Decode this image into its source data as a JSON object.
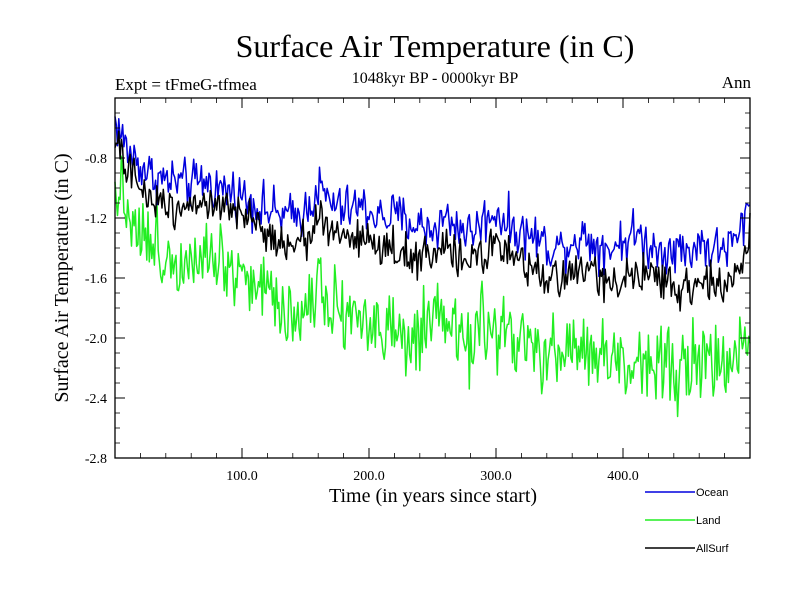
{
  "chart_data": {
    "type": "line",
    "title": "Surface Air Temperature (in C)",
    "left_label": "Expt = tFmeG-tfmea",
    "subtitle": "1048kyr BP - 0000kyr BP",
    "right_label": "Ann",
    "xlabel": "Time (in years since start)",
    "ylabel": "Surface Air Temperature (in C)",
    "xlim": [
      0,
      500
    ],
    "ylim": [
      -2.8,
      -0.4
    ],
    "xticks": [
      100,
      200,
      300,
      400
    ],
    "xtick_labels": [
      "100.0",
      "200.0",
      "300.0",
      "400.0"
    ],
    "yticks": [
      -2.8,
      -2.4,
      -2.0,
      -1.6,
      -1.2,
      -0.8
    ],
    "ytick_labels": [
      "-2.8",
      "-2.4",
      "-2.0",
      "-1.6",
      "-1.2",
      "-0.8"
    ],
    "legend_position": "bottom-right, outside plot",
    "series": [
      {
        "name": "Ocean",
        "color": "#0000dd",
        "x": [
          0,
          10,
          20,
          30,
          40,
          50,
          60,
          70,
          80,
          90,
          100,
          110,
          120,
          130,
          140,
          150,
          160,
          170,
          180,
          190,
          200,
          210,
          220,
          230,
          240,
          250,
          260,
          270,
          280,
          290,
          300,
          310,
          320,
          330,
          340,
          350,
          360,
          370,
          380,
          390,
          400,
          410,
          420,
          430,
          440,
          450,
          460,
          470,
          480,
          490,
          500
        ],
        "values": [
          -0.55,
          -0.75,
          -0.85,
          -0.92,
          -0.95,
          -0.96,
          -0.98,
          -0.95,
          -1.0,
          -1.02,
          -1.05,
          -1.1,
          -1.15,
          -1.18,
          -1.2,
          -1.15,
          -1.0,
          -1.1,
          -1.15,
          -1.12,
          -1.15,
          -1.2,
          -1.18,
          -1.22,
          -1.25,
          -1.28,
          -1.2,
          -1.25,
          -1.3,
          -1.22,
          -1.15,
          -1.25,
          -1.3,
          -1.32,
          -1.38,
          -1.4,
          -1.35,
          -1.32,
          -1.38,
          -1.4,
          -1.35,
          -1.3,
          -1.38,
          -1.42,
          -1.38,
          -1.45,
          -1.35,
          -1.42,
          -1.4,
          -1.35,
          -1.1
        ]
      },
      {
        "name": "Land",
        "color": "#22ee22",
        "x": [
          0,
          10,
          20,
          30,
          40,
          50,
          60,
          70,
          80,
          90,
          100,
          110,
          120,
          130,
          140,
          150,
          160,
          170,
          180,
          190,
          200,
          210,
          220,
          230,
          240,
          250,
          260,
          270,
          280,
          290,
          300,
          310,
          320,
          330,
          340,
          350,
          360,
          370,
          380,
          390,
          400,
          410,
          420,
          430,
          440,
          450,
          460,
          470,
          480,
          490,
          500
        ],
        "values": [
          -0.95,
          -1.1,
          -1.3,
          -1.4,
          -1.45,
          -1.5,
          -1.42,
          -1.38,
          -1.45,
          -1.5,
          -1.55,
          -1.62,
          -1.7,
          -1.75,
          -1.85,
          -1.82,
          -1.6,
          -1.75,
          -1.8,
          -1.85,
          -1.9,
          -1.95,
          -2.0,
          -2.05,
          -2.0,
          -1.95,
          -1.9,
          -1.98,
          -2.02,
          -1.95,
          -1.92,
          -2.0,
          -2.05,
          -2.1,
          -2.15,
          -2.1,
          -2.05,
          -2.08,
          -2.12,
          -2.15,
          -2.18,
          -2.2,
          -2.1,
          -2.15,
          -2.18,
          -2.2,
          -2.15,
          -2.18,
          -2.2,
          -2.15,
          -1.9
        ]
      },
      {
        "name": "AllSurf",
        "color": "#000000",
        "x": [
          0,
          10,
          20,
          30,
          40,
          50,
          60,
          70,
          80,
          90,
          100,
          110,
          120,
          130,
          140,
          150,
          160,
          170,
          180,
          190,
          200,
          210,
          220,
          230,
          240,
          250,
          260,
          270,
          280,
          290,
          300,
          310,
          320,
          330,
          340,
          350,
          360,
          370,
          380,
          390,
          400,
          410,
          420,
          430,
          440,
          450,
          460,
          470,
          480,
          490,
          500
        ],
        "values": [
          -0.7,
          -0.88,
          -1.0,
          -1.08,
          -1.1,
          -1.12,
          -1.1,
          -1.08,
          -1.12,
          -1.15,
          -1.2,
          -1.25,
          -1.3,
          -1.33,
          -1.38,
          -1.35,
          -1.18,
          -1.3,
          -1.33,
          -1.32,
          -1.35,
          -1.4,
          -1.4,
          -1.45,
          -1.45,
          -1.48,
          -1.4,
          -1.45,
          -1.5,
          -1.42,
          -1.38,
          -1.48,
          -1.52,
          -1.55,
          -1.6,
          -1.6,
          -1.55,
          -1.55,
          -1.6,
          -1.62,
          -1.6,
          -1.58,
          -1.6,
          -1.65,
          -1.62,
          -1.68,
          -1.58,
          -1.65,
          -1.65,
          -1.6,
          -1.3
        ]
      }
    ]
  }
}
